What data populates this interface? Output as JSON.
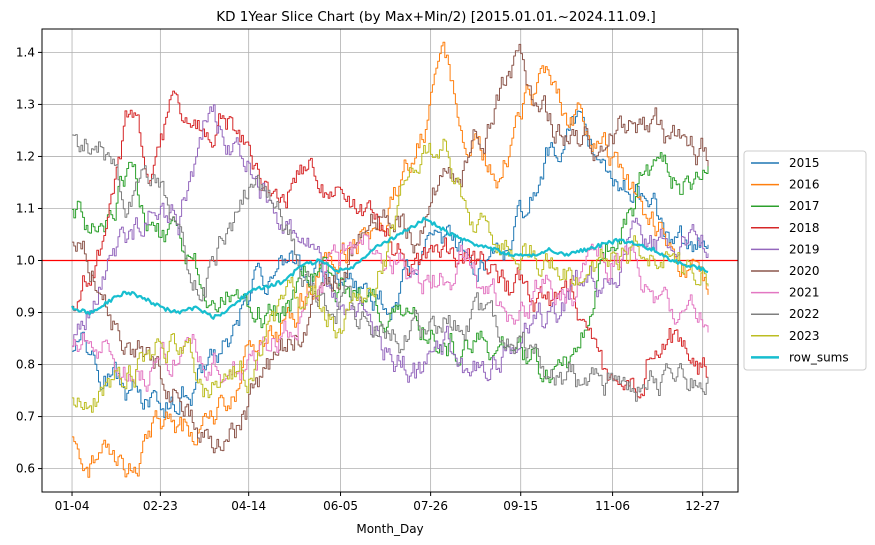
{
  "chart_data": {
    "type": "line",
    "title": "KD 1Year Slice Chart (by Max+Min/2) [2015.01.01.~2024.11.09.]",
    "xlabel": "Month_Day",
    "ylabel": "",
    "x_ticks": [
      "01-04",
      "02-23",
      "04-14",
      "06-05",
      "07-26",
      "09-15",
      "11-06",
      "12-27"
    ],
    "x_tick_index": [
      0,
      50,
      100,
      152,
      203,
      254,
      306,
      357
    ],
    "x_range": [
      -17,
      377
    ],
    "ylim": [
      0.555,
      1.445
    ],
    "y_ticks": [
      0.6,
      0.7,
      0.8,
      0.9,
      1.0,
      1.1,
      1.2,
      1.3,
      1.4
    ],
    "y_tick_labels": [
      "0.6",
      "0.7",
      "0.8",
      "0.9",
      "1.0",
      "1.1",
      "1.2",
      "1.3",
      "1.4"
    ],
    "grid": true,
    "legend_position": "right",
    "reference_line": {
      "y": 1.0,
      "color": "#ff0000"
    },
    "series": [
      {
        "name": "2015",
        "color": "#1f77b4",
        "width": 1,
        "x": [
          0,
          15,
          30,
          45,
          60,
          75,
          90,
          105,
          120,
          135,
          150,
          165,
          180,
          195,
          210,
          225,
          240,
          255,
          270,
          285,
          300,
          315,
          330,
          345,
          360
        ],
        "values": [
          0.84,
          0.78,
          0.75,
          0.72,
          0.74,
          0.8,
          0.86,
          0.97,
          1.0,
          0.97,
          0.98,
          0.93,
          0.89,
          1.0,
          1.03,
          0.99,
          1.03,
          1.08,
          1.21,
          1.27,
          1.21,
          1.14,
          1.09,
          1.02,
          1.02
        ]
      },
      {
        "name": "2016",
        "color": "#ff7f0e",
        "width": 1,
        "x": [
          0,
          15,
          30,
          45,
          60,
          75,
          90,
          105,
          120,
          135,
          150,
          165,
          180,
          195,
          210,
          225,
          240,
          255,
          270,
          285,
          300,
          315,
          330,
          345,
          360
        ],
        "values": [
          0.66,
          0.61,
          0.62,
          0.68,
          0.66,
          0.7,
          0.76,
          0.84,
          0.86,
          0.95,
          1.0,
          1.05,
          1.12,
          1.23,
          1.38,
          1.25,
          1.16,
          1.28,
          1.34,
          1.27,
          1.2,
          1.13,
          1.06,
          1.01,
          0.95
        ]
      },
      {
        "name": "2017",
        "color": "#2ca02c",
        "width": 1,
        "x": [
          0,
          15,
          30,
          45,
          60,
          75,
          90,
          105,
          120,
          135,
          150,
          165,
          180,
          195,
          210,
          225,
          240,
          255,
          270,
          285,
          300,
          315,
          330,
          345,
          360
        ],
        "values": [
          1.08,
          1.07,
          1.17,
          1.06,
          1.0,
          0.97,
          0.93,
          0.92,
          0.9,
          0.96,
          0.93,
          0.92,
          0.91,
          0.86,
          0.84,
          0.82,
          0.84,
          0.8,
          0.79,
          0.77,
          0.99,
          1.09,
          1.17,
          1.15,
          1.22
        ]
      },
      {
        "name": "2018",
        "color": "#d62728",
        "width": 1,
        "x": [
          0,
          15,
          30,
          45,
          60,
          75,
          90,
          105,
          120,
          135,
          150,
          165,
          180,
          195,
          210,
          225,
          240,
          255,
          270,
          285,
          300,
          315,
          330,
          345,
          360
        ],
        "values": [
          0.93,
          1.05,
          1.27,
          1.2,
          1.31,
          1.25,
          1.28,
          1.17,
          1.13,
          1.18,
          1.12,
          1.06,
          1.02,
          1.0,
          1.02,
          0.99,
          0.95,
          0.93,
          0.92,
          0.94,
          0.78,
          0.71,
          0.86,
          0.84,
          0.78
        ]
      },
      {
        "name": "2019",
        "color": "#9467bd",
        "width": 1,
        "x": [
          0,
          15,
          30,
          45,
          60,
          75,
          90,
          105,
          120,
          135,
          150,
          165,
          180,
          195,
          210,
          225,
          240,
          255,
          270,
          285,
          300,
          315,
          330,
          345,
          360
        ],
        "values": [
          0.83,
          0.94,
          1.04,
          1.1,
          1.08,
          1.27,
          1.22,
          1.18,
          1.05,
          1.01,
          0.97,
          0.88,
          0.83,
          0.78,
          0.84,
          0.78,
          0.8,
          0.85,
          0.88,
          0.96,
          0.94,
          1.03,
          1.02,
          1.04,
          1.02
        ]
      },
      {
        "name": "2020",
        "color": "#8c564b",
        "width": 1,
        "x": [
          0,
          15,
          30,
          45,
          60,
          75,
          90,
          105,
          120,
          135,
          150,
          165,
          180,
          195,
          210,
          225,
          240,
          255,
          270,
          285,
          300,
          315,
          330,
          345,
          360
        ],
        "values": [
          1.05,
          0.96,
          0.82,
          0.8,
          0.75,
          0.65,
          0.67,
          0.75,
          0.82,
          0.9,
          0.98,
          1.05,
          1.1,
          1.04,
          1.16,
          1.2,
          1.29,
          1.38,
          1.27,
          1.22,
          1.22,
          1.27,
          1.25,
          1.2,
          1.2
        ]
      },
      {
        "name": "2021",
        "color": "#e377c2",
        "width": 1,
        "x": [
          0,
          15,
          30,
          45,
          60,
          75,
          90,
          105,
          120,
          135,
          150,
          165,
          180,
          195,
          210,
          225,
          240,
          255,
          270,
          285,
          300,
          315,
          330,
          345,
          360
        ],
        "values": [
          0.83,
          0.85,
          0.78,
          0.8,
          0.83,
          0.81,
          0.8,
          0.82,
          0.86,
          0.95,
          0.99,
          1.01,
          1.03,
          0.97,
          0.96,
          1.0,
          0.92,
          0.9,
          0.96,
          0.95,
          1.0,
          1.01,
          0.91,
          0.86,
          0.87
        ]
      },
      {
        "name": "2022",
        "color": "#7f7f7f",
        "width": 1,
        "x": [
          0,
          15,
          30,
          45,
          60,
          75,
          90,
          105,
          120,
          135,
          150,
          165,
          180,
          195,
          210,
          225,
          240,
          255,
          270,
          285,
          300,
          315,
          330,
          345,
          360
        ],
        "values": [
          1.25,
          1.22,
          1.1,
          1.15,
          1.05,
          0.97,
          1.08,
          1.15,
          1.05,
          0.92,
          0.91,
          0.87,
          0.87,
          0.86,
          0.89,
          0.88,
          0.86,
          0.82,
          0.79,
          0.76,
          0.75,
          0.75,
          0.77,
          0.81,
          0.76
        ]
      },
      {
        "name": "2023",
        "color": "#bcbd22",
        "width": 1,
        "x": [
          0,
          15,
          30,
          45,
          60,
          75,
          90,
          105,
          120,
          135,
          150,
          165,
          180,
          195,
          210,
          225,
          240,
          255,
          270,
          285,
          300,
          315,
          330,
          345,
          360
        ],
        "values": [
          0.72,
          0.74,
          0.78,
          0.84,
          0.82,
          0.74,
          0.77,
          0.8,
          0.9,
          0.93,
          0.88,
          0.96,
          1.05,
          1.15,
          1.22,
          1.1,
          1.05,
          1.03,
          0.99,
          0.96,
          0.97,
          1.01,
          1.04,
          1.02,
          0.99
        ]
      },
      {
        "name": "row_sums",
        "color": "#17becf",
        "width": 2.2,
        "x": [
          0,
          10,
          20,
          30,
          40,
          50,
          60,
          70,
          80,
          90,
          100,
          110,
          120,
          130,
          140,
          150,
          160,
          170,
          180,
          190,
          200,
          210,
          220,
          230,
          240,
          250,
          260,
          270,
          280,
          290,
          300,
          310,
          320,
          330,
          340,
          350,
          360
        ],
        "values": [
          0.91,
          0.9,
          0.92,
          0.94,
          0.93,
          0.91,
          0.9,
          0.91,
          0.89,
          0.91,
          0.94,
          0.95,
          0.96,
          0.99,
          1.0,
          0.98,
          0.99,
          1.02,
          1.04,
          1.06,
          1.08,
          1.06,
          1.04,
          1.03,
          1.02,
          1.01,
          1.01,
          1.02,
          1.01,
          1.02,
          1.03,
          1.04,
          1.03,
          1.02,
          1.0,
          0.99,
          0.98
        ]
      }
    ]
  }
}
